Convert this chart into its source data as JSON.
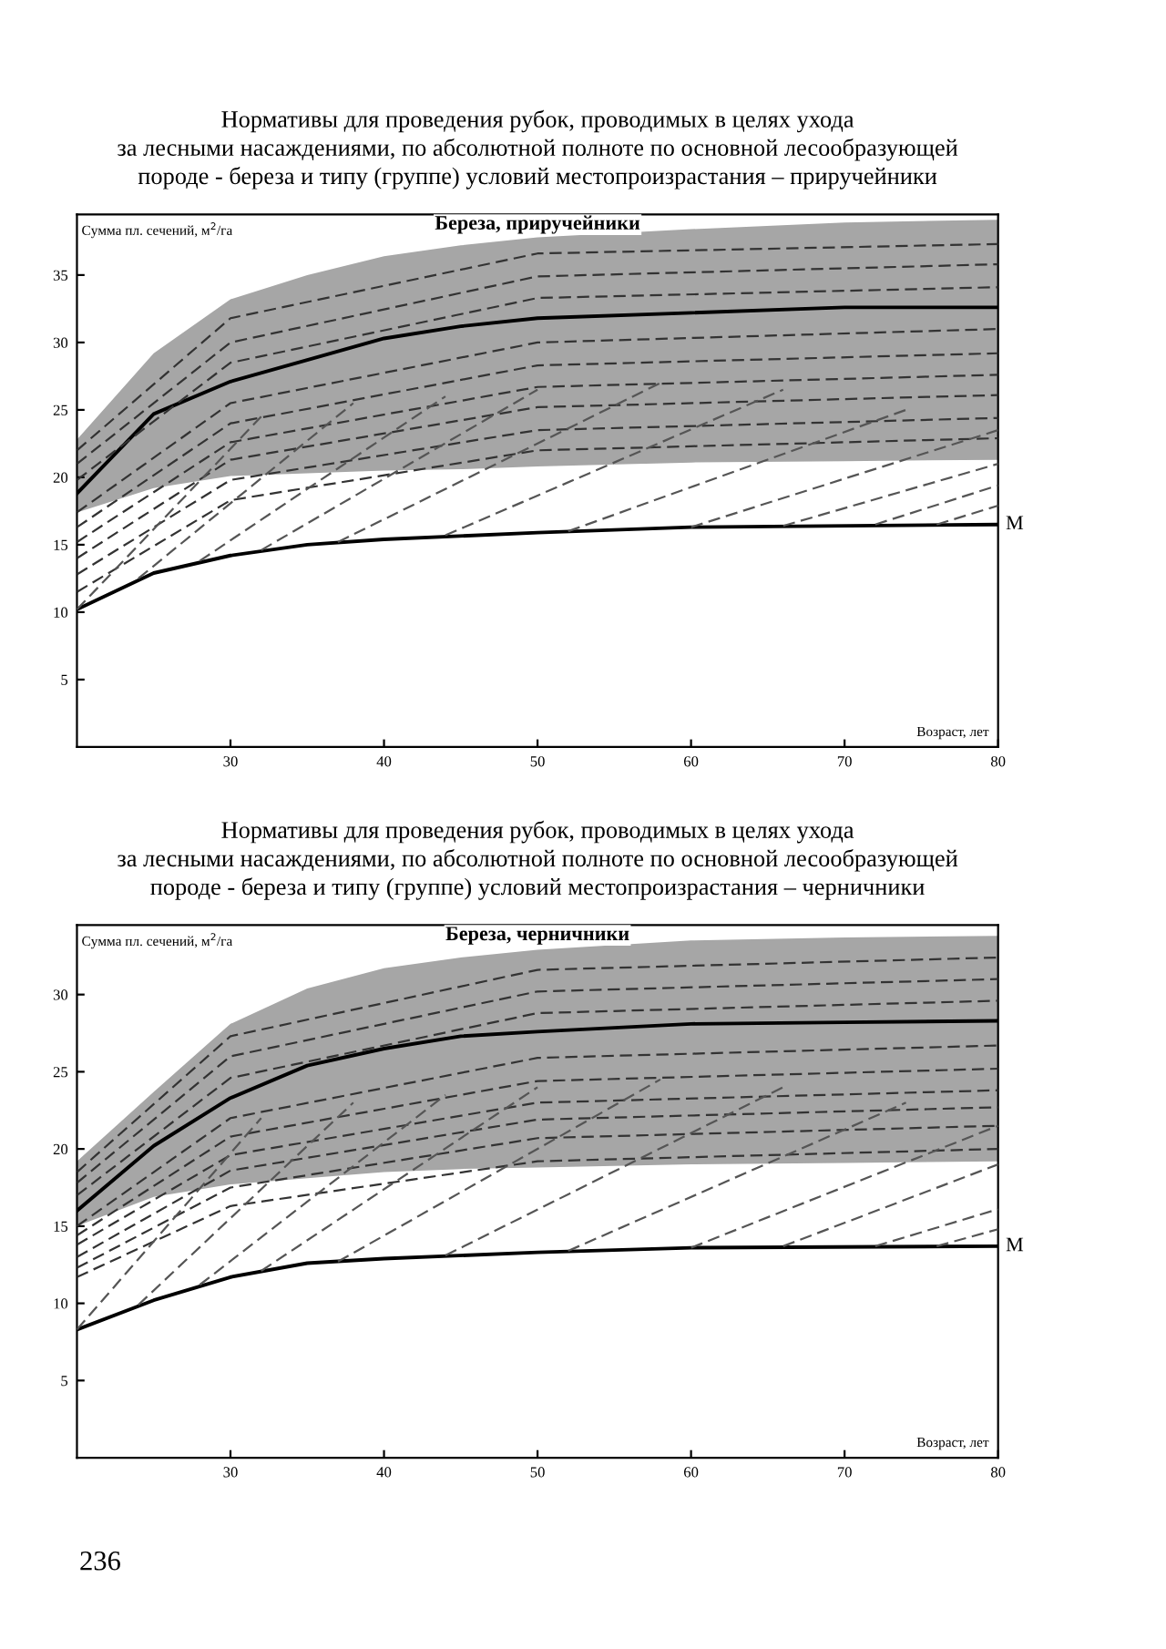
{
  "chart_data": [
    {
      "type": "line",
      "title": "Нормативы для проведения рубок, проводимых в целях ухода\nза лесными насаждениями, по абсолютной полноте по основной лесообразующей\nпороде - береза и типу (группе) условий местопроизрастания – приручейники",
      "subtitle": "Береза, приручейники",
      "ylabel": "Сумма пл. сечений, м$^{2}$/га",
      "xlabel": "Возраст, лет",
      "xlim": [
        20,
        80
      ],
      "xticks": [
        30,
        40,
        50,
        60,
        70,
        80
      ],
      "ylim": [
        0,
        39.5
      ],
      "yticks": [
        5,
        10,
        15,
        20,
        25,
        30,
        35
      ],
      "legend": false,
      "grid": false,
      "series": [
        {
          "color": "#000000",
          "x": [
            20,
            25,
            30,
            35,
            40,
            45,
            50,
            60,
            70,
            80
          ],
          "values": [
            18.8,
            24.7,
            27.1,
            28.7,
            30.3,
            31.2,
            31.8,
            32.2,
            32.6,
            32.6
          ],
          "lower": [
            17.4,
            19.2,
            20.1,
            20.3,
            20.5,
            20.6,
            20.8,
            21.1,
            21.2,
            21.3
          ],
          "upper": [
            22.8,
            29.2,
            33.2,
            35.0,
            36.4,
            37.2,
            37.8,
            38.4,
            38.9,
            39.1
          ],
          "line_style": "solid"
        },
        {
          "name": "M",
          "color": "#000000",
          "x": [
            20,
            25,
            30,
            35,
            40,
            50,
            60,
            80
          ],
          "values": [
            10.2,
            12.9,
            14.2,
            15.0,
            15.4,
            15.9,
            16.3,
            16.5
          ],
          "line_style": "solid"
        },
        {
          "color": "#333333",
          "x": [
            20,
            30,
            50,
            80
          ],
          "values": [
            22.0,
            31.8,
            36.6,
            37.3
          ],
          "line_style": "dashed"
        },
        {
          "color": "#333333",
          "x": [
            20,
            30,
            50,
            80
          ],
          "values": [
            21.0,
            30.0,
            34.9,
            35.8
          ],
          "line_style": "dashed"
        },
        {
          "color": "#333333",
          "x": [
            20,
            30,
            50,
            80
          ],
          "values": [
            19.8,
            28.5,
            33.3,
            34.1
          ],
          "line_style": "dashed"
        },
        {
          "color": "#333333",
          "x": [
            20,
            30,
            50,
            80
          ],
          "values": [
            17.4,
            25.5,
            30.0,
            31.0
          ],
          "line_style": "dashed"
        },
        {
          "color": "#333333",
          "x": [
            20,
            30,
            50,
            80
          ],
          "values": [
            16.3,
            24.0,
            28.3,
            29.2
          ],
          "line_style": "dashed"
        },
        {
          "color": "#333333",
          "x": [
            20,
            30,
            50,
            80
          ],
          "values": [
            15.2,
            22.6,
            26.7,
            27.6
          ],
          "line_style": "dashed"
        },
        {
          "color": "#333333",
          "x": [
            20,
            30,
            50,
            80
          ],
          "values": [
            14.0,
            21.3,
            25.2,
            26.1
          ],
          "line_style": "dashed"
        },
        {
          "color": "#333333",
          "x": [
            20,
            30,
            50,
            80
          ],
          "values": [
            12.8,
            19.8,
            23.5,
            24.4
          ],
          "line_style": "dashed"
        },
        {
          "color": "#333333",
          "x": [
            20,
            30,
            50,
            80
          ],
          "values": [
            11.5,
            18.3,
            22.0,
            22.9
          ],
          "line_style": "dashed"
        },
        {
          "color": "#555555",
          "x": [
            20,
            32
          ],
          "values": [
            10.2,
            24.5
          ],
          "line_style": "dashed"
        },
        {
          "color": "#555555",
          "x": [
            24,
            38
          ],
          "values": [
            12.5,
            25.5
          ],
          "line_style": "dashed"
        },
        {
          "color": "#555555",
          "x": [
            28,
            44
          ],
          "values": [
            13.8,
            26.0
          ],
          "line_style": "dashed"
        },
        {
          "color": "#555555",
          "x": [
            32,
            50
          ],
          "values": [
            14.6,
            26.5
          ],
          "line_style": "dashed"
        },
        {
          "color": "#555555",
          "x": [
            37,
            58
          ],
          "values": [
            15.2,
            27.0
          ],
          "line_style": "dashed"
        },
        {
          "color": "#555555",
          "x": [
            44,
            66
          ],
          "values": [
            15.7,
            26.5
          ],
          "line_style": "dashed"
        },
        {
          "color": "#555555",
          "x": [
            52,
            74
          ],
          "values": [
            16.0,
            25.0
          ],
          "line_style": "dashed"
        },
        {
          "color": "#555555",
          "x": [
            60,
            80
          ],
          "values": [
            16.3,
            23.5
          ],
          "line_style": "dashed"
        },
        {
          "color": "#555555",
          "x": [
            66,
            80
          ],
          "values": [
            16.4,
            21.0
          ],
          "line_style": "dashed"
        },
        {
          "color": "#555555",
          "x": [
            72,
            80
          ],
          "values": [
            16.5,
            19.4
          ],
          "line_style": "dashed"
        },
        {
          "color": "#555555",
          "x": [
            76,
            80
          ],
          "values": [
            16.5,
            17.9
          ],
          "line_style": "dashed"
        }
      ]
    },
    {
      "type": "line",
      "title": "Нормативы для проведения рубок, проводимых в целях ухода\nза лесными насаждениями, по абсолютной полноте по основной лесообразующей\nпороде - береза и типу (группе) условий местопроизрастания – черничники",
      "subtitle": "Береза, черничники",
      "ylabel": "Сумма пл. сечений, м$^{2}$/га",
      "xlabel": "Возраст, лет",
      "xlim": [
        20,
        80
      ],
      "xticks": [
        30,
        40,
        50,
        60,
        70,
        80
      ],
      "ylim": [
        0,
        34.5
      ],
      "yticks": [
        5,
        10,
        15,
        20,
        25,
        30
      ],
      "legend": false,
      "grid": false,
      "annotations": [
        "236"
      ],
      "series": [
        {
          "color": "#000000",
          "x": [
            20,
            25,
            30,
            35,
            40,
            45,
            50,
            60,
            70,
            80
          ],
          "values": [
            16.0,
            20.2,
            23.3,
            25.4,
            26.5,
            27.3,
            27.6,
            28.1,
            28.2,
            28.3
          ],
          "lower": [
            15.0,
            16.9,
            17.7,
            18.1,
            18.5,
            18.7,
            18.8,
            19.0,
            19.1,
            19.2
          ],
          "upper": [
            19.2,
            23.7,
            28.1,
            30.4,
            31.7,
            32.4,
            32.9,
            33.5,
            33.7,
            33.8
          ],
          "line_style": "solid"
        },
        {
          "name": "M",
          "color": "#000000",
          "x": [
            20,
            25,
            30,
            35,
            40,
            50,
            60,
            80
          ],
          "values": [
            8.3,
            10.2,
            11.7,
            12.6,
            12.9,
            13.3,
            13.6,
            13.7
          ],
          "line_style": "solid"
        },
        {
          "color": "#333333",
          "x": [
            20,
            30,
            50,
            80
          ],
          "values": [
            18.5,
            27.3,
            31.6,
            32.4
          ],
          "line_style": "dashed"
        },
        {
          "color": "#333333",
          "x": [
            20,
            30,
            50,
            80
          ],
          "values": [
            17.8,
            26.0,
            30.2,
            31.0
          ],
          "line_style": "dashed"
        },
        {
          "color": "#333333",
          "x": [
            20,
            30,
            50,
            80
          ],
          "values": [
            17.0,
            24.6,
            28.8,
            29.6
          ],
          "line_style": "dashed"
        },
        {
          "color": "#333333",
          "x": [
            20,
            30,
            50,
            80
          ],
          "values": [
            15.0,
            22.0,
            25.9,
            26.7
          ],
          "line_style": "dashed"
        },
        {
          "color": "#333333",
          "x": [
            20,
            30,
            50,
            80
          ],
          "values": [
            14.4,
            20.8,
            24.4,
            25.2
          ],
          "line_style": "dashed"
        },
        {
          "color": "#333333",
          "x": [
            20,
            30,
            50,
            80
          ],
          "values": [
            13.8,
            19.6,
            23.0,
            23.8
          ],
          "line_style": "dashed"
        },
        {
          "color": "#333333",
          "x": [
            20,
            30,
            50,
            80
          ],
          "values": [
            13.0,
            18.6,
            21.9,
            22.7
          ],
          "line_style": "dashed"
        },
        {
          "color": "#333333",
          "x": [
            20,
            30,
            50,
            80
          ],
          "values": [
            12.3,
            17.5,
            20.7,
            21.5
          ],
          "line_style": "dashed"
        },
        {
          "color": "#333333",
          "x": [
            20,
            30,
            50,
            80
          ],
          "values": [
            11.7,
            16.3,
            19.2,
            20.0
          ],
          "line_style": "dashed"
        },
        {
          "color": "#555555",
          "x": [
            20,
            32
          ],
          "values": [
            8.3,
            22.0
          ],
          "line_style": "dashed"
        },
        {
          "color": "#555555",
          "x": [
            24,
            38
          ],
          "values": [
            9.9,
            23.0
          ],
          "line_style": "dashed"
        },
        {
          "color": "#555555",
          "x": [
            28,
            44
          ],
          "values": [
            11.2,
            23.5
          ],
          "line_style": "dashed"
        },
        {
          "color": "#555555",
          "x": [
            32,
            50
          ],
          "values": [
            12.1,
            24.0
          ],
          "line_style": "dashed"
        },
        {
          "color": "#555555",
          "x": [
            37,
            58
          ],
          "values": [
            12.7,
            24.5
          ],
          "line_style": "dashed"
        },
        {
          "color": "#555555",
          "x": [
            44,
            66
          ],
          "values": [
            13.1,
            24.0
          ],
          "line_style": "dashed"
        },
        {
          "color": "#555555",
          "x": [
            52,
            74
          ],
          "values": [
            13.4,
            23.0
          ],
          "line_style": "dashed"
        },
        {
          "color": "#555555",
          "x": [
            60,
            80
          ],
          "values": [
            13.6,
            21.5
          ],
          "line_style": "dashed"
        },
        {
          "color": "#555555",
          "x": [
            66,
            80
          ],
          "values": [
            13.7,
            19.0
          ],
          "line_style": "dashed"
        },
        {
          "color": "#555555",
          "x": [
            72,
            80
          ],
          "values": [
            13.7,
            16.1
          ],
          "line_style": "dashed"
        },
        {
          "color": "#555555",
          "x": [
            76,
            80
          ],
          "values": [
            13.7,
            14.8
          ],
          "line_style": "dashed"
        }
      ]
    }
  ]
}
